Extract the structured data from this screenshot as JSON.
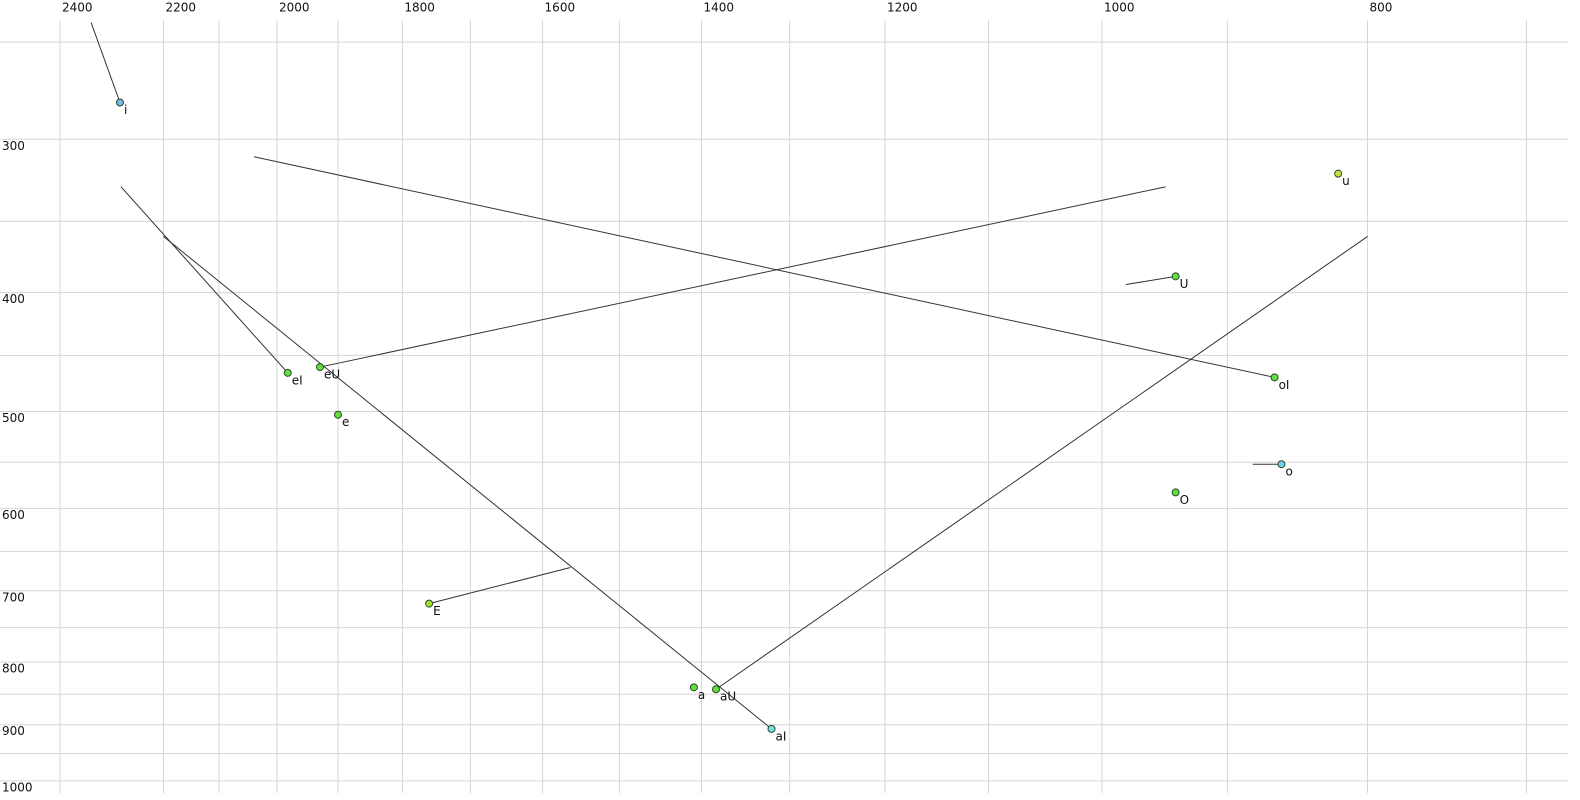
{
  "chart_data": {
    "type": "scatter",
    "xscale": "log",
    "yscale": "log",
    "xlim": [
      2524,
      676
    ],
    "ylim": [
      231,
      1023
    ],
    "xticks": [
      2400,
      2200,
      2000,
      1800,
      1600,
      1400,
      1200,
      1000,
      800
    ],
    "x_minor_ticks": [
      2100,
      1900,
      1700,
      1500,
      1300,
      1100,
      900,
      700
    ],
    "yticks": [
      300,
      400,
      500,
      600,
      700,
      800,
      900,
      1000
    ],
    "y_minor_ticks": [
      250,
      350,
      450,
      550,
      650,
      750,
      850,
      950
    ],
    "grid": true,
    "points": [
      {
        "name": "i",
        "color": "#7ab8f0",
        "x": 2282,
        "y": 280,
        "x_end": 2338,
        "y_end": 241
      },
      {
        "name": "u",
        "color": "#c8e040",
        "x": 820,
        "y": 320,
        "x_end": null,
        "y_end": null
      },
      {
        "name": "U",
        "color": "#60e040",
        "x": 940,
        "y": 388,
        "x_end": 980,
        "y_end": 394
      },
      {
        "name": "eI",
        "color": "#60e040",
        "x": 1982,
        "y": 465,
        "x_end": 2280,
        "y_end": 328
      },
      {
        "name": "eU",
        "color": "#60e040",
        "x": 1929,
        "y": 460,
        "x_end": 948,
        "y_end": 328
      },
      {
        "name": "e",
        "color": "#60e040",
        "x": 1900,
        "y": 503,
        "x_end": null,
        "y_end": null
      },
      {
        "name": "oI",
        "color": "#60e040",
        "x": 865,
        "y": 469,
        "x_end": 2039,
        "y_end": 310
      },
      {
        "name": "o",
        "color": "#70d0f0",
        "x": 860,
        "y": 552,
        "x_end": 881,
        "y_end": 552
      },
      {
        "name": "O",
        "color": "#60e040",
        "x": 940,
        "y": 582,
        "x_end": null,
        "y_end": null
      },
      {
        "name": "E",
        "color": "#a0e030",
        "x": 1760,
        "y": 717,
        "x_end": 1563,
        "y_end": 670
      },
      {
        "name": "a",
        "color": "#60e040",
        "x": 1409,
        "y": 839,
        "x_end": null,
        "y_end": null
      },
      {
        "name": "aU",
        "color": "#60e040",
        "x": 1383,
        "y": 842,
        "x_end": 800,
        "y_end": 360
      },
      {
        "name": "aI",
        "color": "#70e0f0",
        "x": 1320,
        "y": 907,
        "x_end": 2200,
        "y_end": 360
      }
    ]
  }
}
